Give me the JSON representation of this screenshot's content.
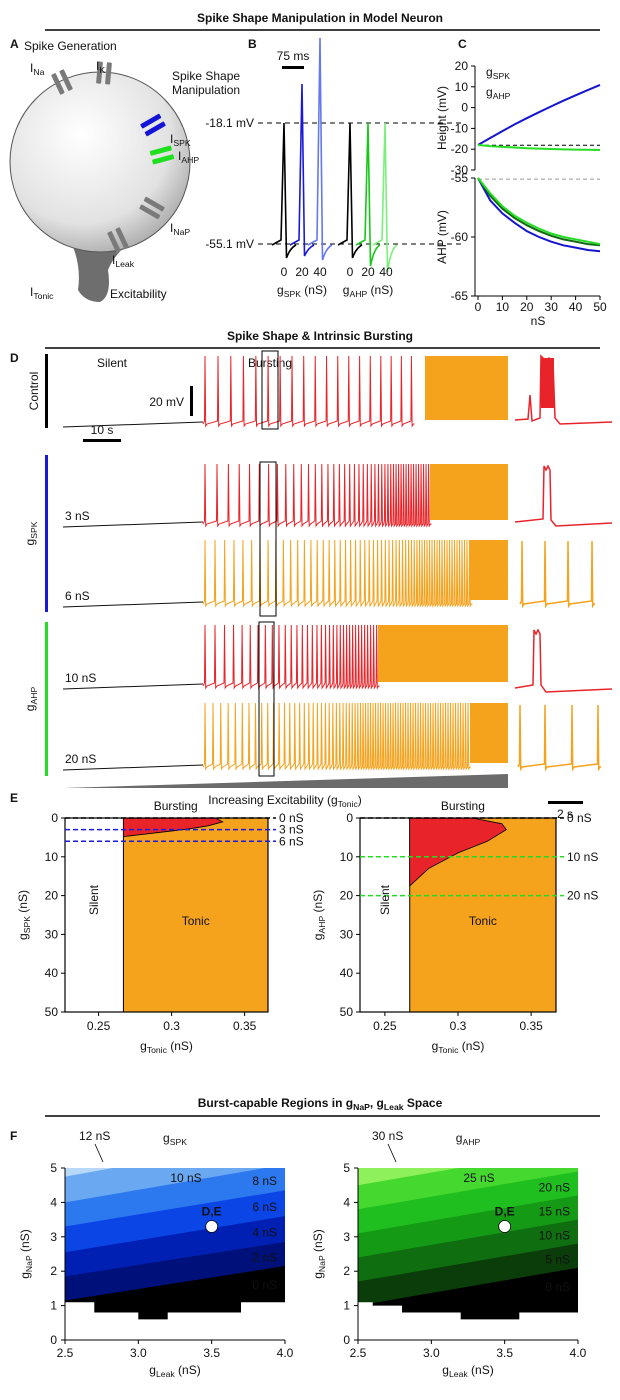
{
  "titles": {
    "top": "Spike Shape Manipulation in Model Neuron",
    "middle": "Spike Shape & Intrinsic Bursting",
    "bottom": [
      "Burst-capable Regions in g",
      "NaP",
      ", g",
      "Leak",
      " Space"
    ]
  },
  "panel_labels": [
    "A",
    "B",
    "C",
    "D",
    "E",
    "F"
  ],
  "panel_a": {
    "spike_generation": "Spike Generation",
    "manipulation": [
      "Spike Shape",
      "Manipulation"
    ],
    "excitability": "Excitability",
    "currents": {
      "na": [
        "I",
        "Na"
      ],
      "k": [
        "I",
        "K"
      ],
      "spk": [
        "I",
        "SPK"
      ],
      "ahp": [
        "I",
        "AHP"
      ],
      "nap": [
        "I",
        "NaP"
      ],
      "leak": [
        "I",
        "Leak"
      ],
      "tonic": [
        "I",
        "Tonic"
      ]
    }
  },
  "panel_b": {
    "scale_bar": "75 ms",
    "height_label": "-18.1 mV",
    "trough_label": "-55.1 mV",
    "groups": [
      {
        "ticks": [
          0,
          20,
          40
        ],
        "label": [
          "g",
          "SPK",
          " (nS)"
        ],
        "color": "#1a1ad6"
      },
      {
        "ticks": [
          0,
          20,
          40
        ],
        "label": [
          "g",
          "AHP",
          " (nS)"
        ],
        "color": "#18c818"
      }
    ]
  },
  "panel_c": {
    "type": "line",
    "x": [
      0,
      5,
      10,
      15,
      20,
      25,
      30,
      35,
      40,
      45,
      50
    ],
    "xlim": [
      0,
      50
    ],
    "xticks": [
      0,
      10,
      20,
      30,
      40,
      50
    ],
    "xlabel": "nS",
    "charts": [
      {
        "ylabel": "Height (mV)",
        "ylim": [
          -30,
          20
        ],
        "yticks": [
          -30,
          -20,
          -10,
          0,
          10,
          20
        ],
        "reference": -18.1,
        "reference_color": "#000000",
        "series": [
          {
            "name": [
              "g",
              "SPK"
            ],
            "color": "#1515d0",
            "values": [
              -18,
              -14.6,
              -11.3,
              -8.1,
              -5.1,
              -2.2,
              0.6,
              3.3,
              5.9,
              8.4,
              10.9
            ]
          },
          {
            "name": [
              "g",
              "AHP"
            ],
            "color": "#22dd22",
            "values": [
              -18,
              -18.5,
              -18.9,
              -19.2,
              -19.5,
              -19.7,
              -19.9,
              -20.1,
              -20.2,
              -20.3,
              -20.4
            ]
          }
        ]
      },
      {
        "ylabel": "AHP (mV)",
        "ylim": [
          -65,
          -55
        ],
        "yticks": [
          -65,
          -60,
          -55
        ],
        "reference": -55.1,
        "reference_color": "#999999",
        "series": [
          {
            "color": "#1515d0",
            "values": [
              -55,
              -56.9,
              -58,
              -58.8,
              -59.5,
              -60,
              -60.4,
              -60.7,
              -60.9,
              -61.1,
              -61.2
            ]
          },
          {
            "color": "#116611",
            "values": [
              -55,
              -56.5,
              -57.6,
              -58.4,
              -59,
              -59.5,
              -59.9,
              -60.2,
              -60.4,
              -60.6,
              -60.7
            ]
          },
          {
            "color": "#22dd22",
            "values": [
              -55,
              -56.3,
              -57.4,
              -58.2,
              -58.8,
              -59.3,
              -59.7,
              -60,
              -60.2,
              -60.4,
              -60.6
            ]
          }
        ]
      }
    ]
  },
  "panel_d": {
    "regimes": {
      "silent": "Silent",
      "bursting": "Bursting",
      "tonic": "Tonic"
    },
    "colors": {
      "silent": "#777777",
      "bursting": "#e8242a",
      "tonic": "#f5a21c"
    },
    "control": "Control",
    "voltage_bar": "20 mV",
    "time_bar": "10 s",
    "inset_time_bar": "2 s",
    "axis": [
      "Increasing Excitability (g",
      "Tonic",
      ")"
    ],
    "groups": [
      {
        "label": [
          "g",
          "SPK"
        ],
        "color": "#1a1ad6",
        "rows": [
          "3 nS",
          "6 nS"
        ]
      },
      {
        "label": [
          "g",
          "AHP"
        ],
        "color": "#22dd22",
        "rows": [
          "10 nS",
          "20 nS"
        ]
      }
    ]
  },
  "panel_e": [
    {
      "type": "region",
      "title": "Bursting",
      "silent": "Silent",
      "tonic": "Tonic",
      "ylabel": [
        "g",
        "SPK",
        " (nS)"
      ],
      "ylabel_color": "#1a1ad6",
      "xlabel": [
        "g",
        "Tonic",
        " (nS)"
      ],
      "xlim": [
        0.227,
        0.366
      ],
      "xticks": [
        0.25,
        0.3,
        0.35
      ],
      "ylim": [
        0,
        50
      ],
      "yticks": [
        0,
        10,
        20,
        30,
        40,
        50
      ],
      "y_inverted": true,
      "tonic_onset": 0.267,
      "bursting_x": [
        0.267,
        0.29,
        0.31,
        0.325,
        0.335,
        0.33,
        0.267
      ],
      "bursting_y": [
        4.8,
        3.8,
        2.9,
        2,
        1,
        0,
        0
      ],
      "lines": [
        {
          "value": 0,
          "label": "0 nS",
          "color": "#000000"
        },
        {
          "value": 3,
          "label": "3 nS",
          "color": "#1a1ae0"
        },
        {
          "value": 6,
          "label": "6 nS",
          "color": "#1a1ae0"
        }
      ]
    },
    {
      "type": "region",
      "title": "Bursting",
      "silent": "Silent",
      "tonic": "Tonic",
      "ylabel": [
        "g",
        "AHP",
        " (nS)"
      ],
      "ylabel_color": "#22cc22",
      "xlabel": [
        "g",
        "Tonic",
        " (nS)"
      ],
      "xlim": [
        0.233,
        0.367
      ],
      "xticks": [
        0.25,
        0.3,
        0.35
      ],
      "ylim": [
        0,
        50
      ],
      "yticks": [
        0,
        10,
        20,
        30,
        40,
        50
      ],
      "y_inverted": true,
      "tonic_onset": 0.267,
      "bursting_x": [
        0.267,
        0.28,
        0.3,
        0.32,
        0.333,
        0.33,
        0.31,
        0.267
      ],
      "bursting_y": [
        17.5,
        13,
        9,
        6,
        3,
        1.5,
        0,
        0
      ],
      "lines": [
        {
          "value": 0,
          "label": "0 nS",
          "color": "#000000"
        },
        {
          "value": 10,
          "label": "10 nS",
          "color": "#22dd22"
        },
        {
          "value": 20,
          "label": "20 nS",
          "color": "#22dd22"
        }
      ]
    }
  ],
  "panel_f": [
    {
      "type": "heatmap",
      "title": [
        "g",
        "SPK"
      ],
      "title_color": "#1a1ad6",
      "xlabel": [
        "g",
        "Leak",
        " (nS)"
      ],
      "ylabel": [
        "g",
        "NaP",
        " (nS)"
      ],
      "xlim": [
        2.5,
        4.0
      ],
      "ylim": [
        0,
        5
      ],
      "xticks": [
        2.5,
        {
          "value": 3,
          "label": "3.0"
        },
        3.5,
        {
          "value": 4,
          "label": "4.0"
        }
      ],
      "yticks": [
        0,
        1,
        2,
        3,
        4,
        5
      ],
      "floor_x": [
        2.5,
        2.7,
        2.7,
        3.0,
        3.0,
        3.2,
        3.2,
        3.7,
        3.7,
        4.0
      ],
      "floor_y": [
        1.1,
        1.1,
        0.8,
        0.8,
        0.6,
        0.6,
        0.8,
        0.8,
        1.1,
        1.1
      ],
      "bands": [
        {
          "label": "0 nS",
          "color": "#000000",
          "top": [
            1.15,
            2.15
          ]
        },
        {
          "label": "2 nS",
          "color": "#00107a",
          "top": [
            1.85,
            2.85
          ]
        },
        {
          "label": "4 nS",
          "color": "#0020b4",
          "top": [
            2.55,
            3.6
          ]
        },
        {
          "label": "6 nS",
          "color": "#0b45e6",
          "top": [
            3.3,
            4.35
          ]
        },
        {
          "label": "8 nS",
          "color": "#2c78ee",
          "top": [
            4.0,
            5.1
          ]
        },
        {
          "label": "10 nS",
          "color": "#6aa8f2",
          "top": [
            4.75,
            5.9
          ]
        },
        {
          "label": "12 nS",
          "color": "#b8d8f8",
          "top": [
            5,
            5
          ]
        }
      ],
      "marker": {
        "label": "D,E",
        "x": 3.5,
        "y": 3.3
      }
    },
    {
      "type": "heatmap",
      "title": [
        "g",
        "AHP"
      ],
      "title_color": "#22dd22",
      "xlabel": [
        "g",
        "Leak",
        " (nS)"
      ],
      "ylabel": [
        "g",
        "NaP",
        " (nS)"
      ],
      "xlim": [
        2.5,
        4.0
      ],
      "ylim": [
        0,
        5
      ],
      "xticks": [
        2.5,
        {
          "value": 3,
          "label": "3.0"
        },
        3.5,
        {
          "value": 4,
          "label": "4.0"
        }
      ],
      "yticks": [
        0,
        1,
        2,
        3,
        4,
        5
      ],
      "floor_x": [
        2.5,
        2.6,
        2.6,
        2.8,
        2.8,
        3.2,
        3.2,
        3.6,
        3.6,
        4.0
      ],
      "floor_y": [
        1.1,
        1.1,
        1.0,
        1.0,
        0.8,
        0.8,
        0.6,
        0.6,
        0.8,
        0.8
      ],
      "bands": [
        {
          "label": "0 nS",
          "color": "#000000",
          "top": [
            1.0,
            2.1
          ]
        },
        {
          "label": "5 nS",
          "color": "#0a3d0a",
          "top": [
            1.7,
            2.8
          ]
        },
        {
          "label": "10 nS",
          "color": "#0f6e10",
          "top": [
            2.4,
            3.5
          ]
        },
        {
          "label": "15 nS",
          "color": "#159a15",
          "top": [
            3.1,
            4.2
          ]
        },
        {
          "label": "20 nS",
          "color": "#1fbf1f",
          "top": [
            3.8,
            4.9
          ]
        },
        {
          "label": "25 nS",
          "color": "#45d82e",
          "top": [
            4.5,
            5.6
          ]
        },
        {
          "label": "30 nS",
          "color": "#8ef05a",
          "top": [
            5,
            5
          ]
        }
      ],
      "marker": {
        "label": "D,E",
        "x": 3.5,
        "y": 3.3
      }
    }
  ]
}
